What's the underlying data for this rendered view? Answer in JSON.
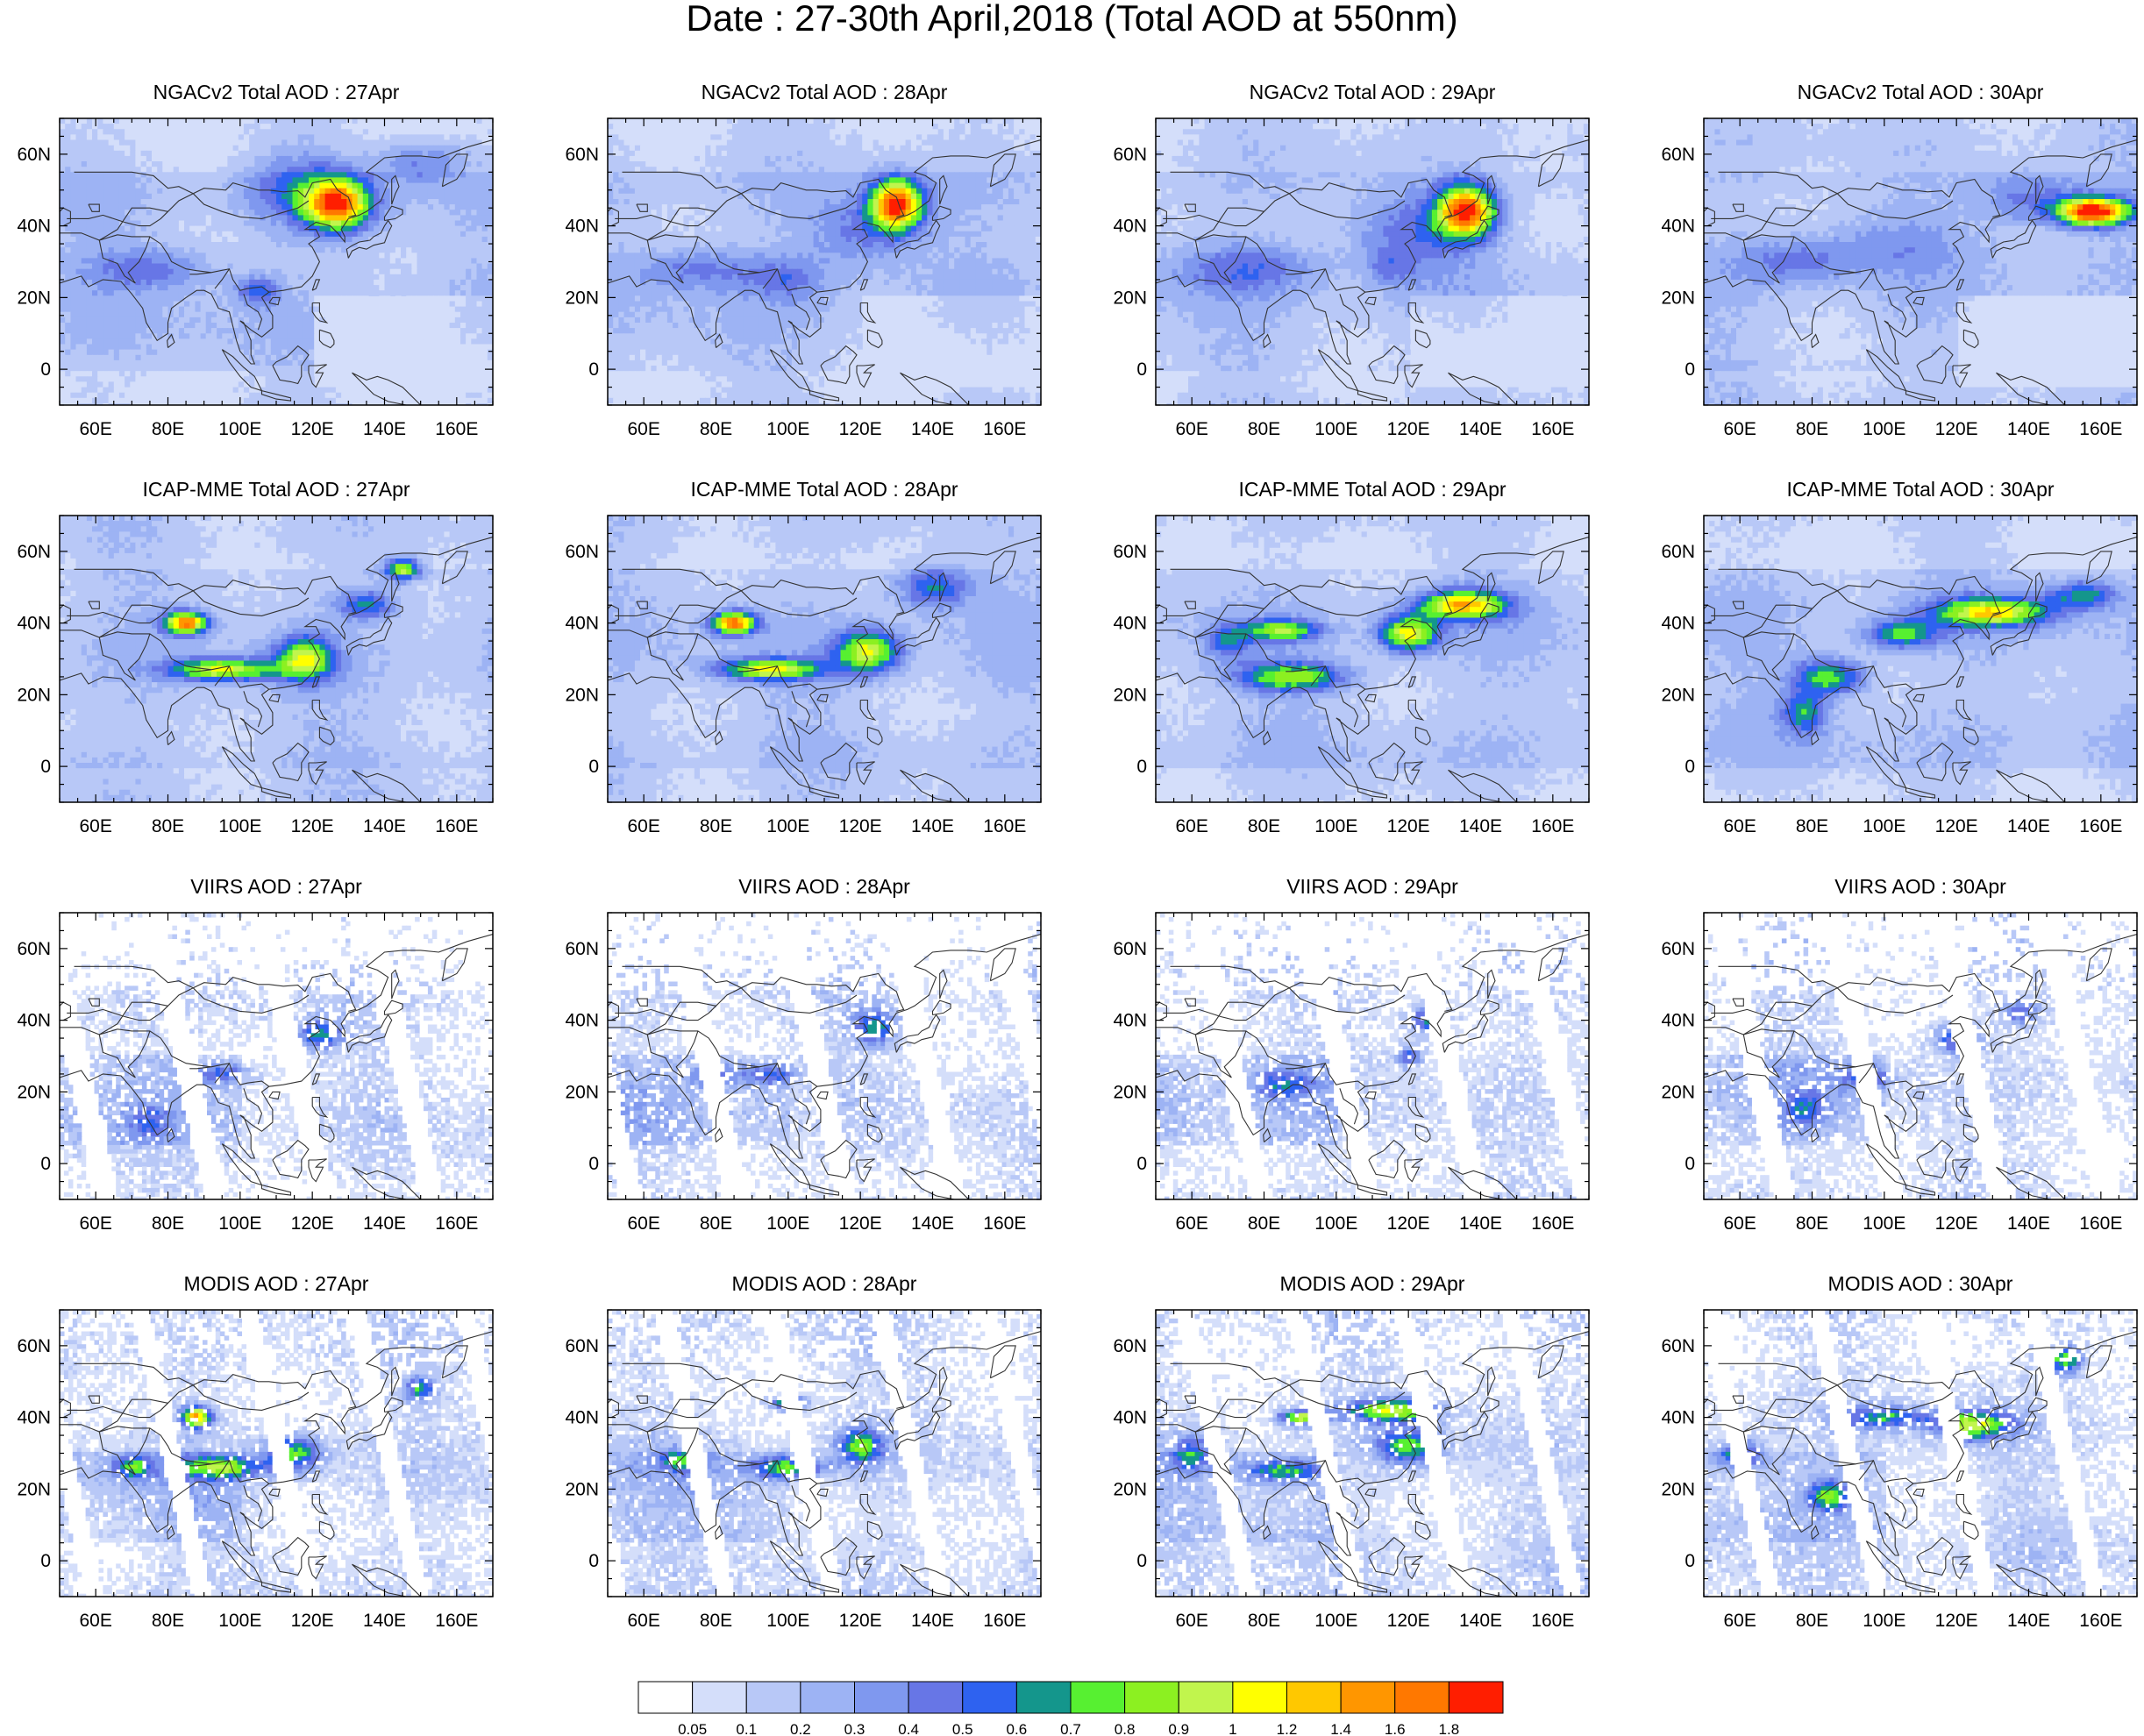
{
  "title": "Date : 27-30th April,2018 (Total AOD at 550nm)",
  "lon_ticks": [
    "60E",
    "80E",
    "100E",
    "120E",
    "140E",
    "160E"
  ],
  "lat_ticks": [
    "60N",
    "40N",
    "20N",
    "0"
  ],
  "colorbar": {
    "labels": [
      "0.05",
      "0.1",
      "0.2",
      "0.3",
      "0.4",
      "0.5",
      "0.6",
      "0.7",
      "0.8",
      "0.9",
      "1",
      "1.2",
      "1.4",
      "1.6",
      "1.8"
    ],
    "colors": [
      "#ffffff",
      "#d4defa",
      "#b8c8f7",
      "#9db3f4",
      "#7f98ef",
      "#6776e6",
      "#2e62f0",
      "#14968c",
      "#57f031",
      "#8cf021",
      "#c1f54d",
      "#ffff00",
      "#ffc800",
      "#ff9600",
      "#ff7800",
      "#ff1e00"
    ]
  },
  "background_color": "#d4defa",
  "panels": [
    {
      "title": "NGACv2 Total AOD : 27Apr"
    },
    {
      "title": "NGACv2 Total AOD : 28Apr"
    },
    {
      "title": "NGACv2 Total AOD : 29Apr"
    },
    {
      "title": "NGACv2 Total AOD : 30Apr"
    },
    {
      "title": "ICAP-MME Total AOD : 27Apr"
    },
    {
      "title": "ICAP-MME Total AOD : 28Apr"
    },
    {
      "title": "ICAP-MME Total AOD : 29Apr"
    },
    {
      "title": "ICAP-MME Total AOD : 30Apr"
    },
    {
      "title": "VIIRS AOD : 27Apr"
    },
    {
      "title": "VIIRS AOD : 28Apr"
    },
    {
      "title": "VIIRS AOD : 29Apr"
    },
    {
      "title": "VIIRS AOD : 30Apr"
    },
    {
      "title": "MODIS AOD : 27Apr"
    },
    {
      "title": "MODIS AOD : 28Apr"
    },
    {
      "title": "MODIS AOD : 29Apr"
    },
    {
      "title": "MODIS AOD : 30Apr"
    }
  ]
}
